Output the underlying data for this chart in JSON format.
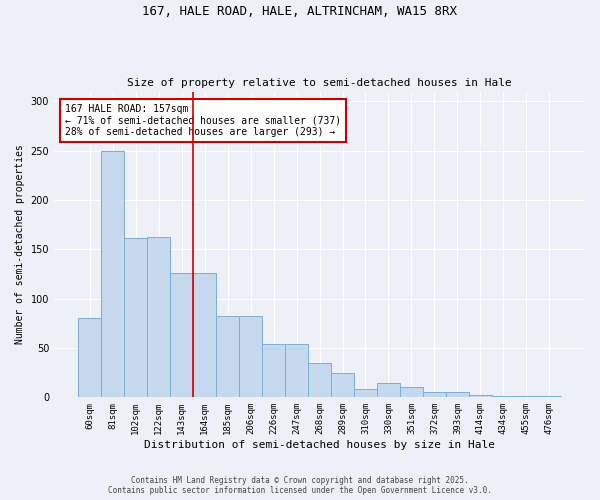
{
  "title_line1": "167, HALE ROAD, HALE, ALTRINCHAM, WA15 8RX",
  "title_line2": "Size of property relative to semi-detached houses in Hale",
  "xlabel": "Distribution of semi-detached houses by size in Hale",
  "ylabel": "Number of semi-detached properties",
  "categories": [
    "60sqm",
    "81sqm",
    "102sqm",
    "122sqm",
    "143sqm",
    "164sqm",
    "185sqm",
    "206sqm",
    "226sqm",
    "247sqm",
    "268sqm",
    "289sqm",
    "310sqm",
    "330sqm",
    "351sqm",
    "372sqm",
    "393sqm",
    "414sqm",
    "434sqm",
    "455sqm",
    "476sqm"
  ],
  "values": [
    80,
    250,
    162,
    163,
    126,
    126,
    82,
    82,
    54,
    54,
    35,
    25,
    8,
    15,
    10,
    5,
    5,
    2,
    1,
    1,
    1
  ],
  "bar_color": "#c5d8ed",
  "bar_edge_color": "#7aafd4",
  "vline_color": "#cc0000",
  "vline_x_index": 4.5,
  "annotation_title": "167 HALE ROAD: 157sqm",
  "annotation_line2": "← 71% of semi-detached houses are smaller (737)",
  "annotation_line3": "28% of semi-detached houses are larger (293) →",
  "annotation_box_color": "#cc0000",
  "background_color": "#edf1f7",
  "grid_color": "#ffffff",
  "footer_line1": "Contains HM Land Registry data © Crown copyright and database right 2025.",
  "footer_line2": "Contains public sector information licensed under the Open Government Licence v3.0.",
  "ylim": [
    0,
    310
  ],
  "yticks": [
    0,
    50,
    100,
    150,
    200,
    250,
    300
  ],
  "fig_width": 6.0,
  "fig_height": 5.0,
  "dpi": 100
}
